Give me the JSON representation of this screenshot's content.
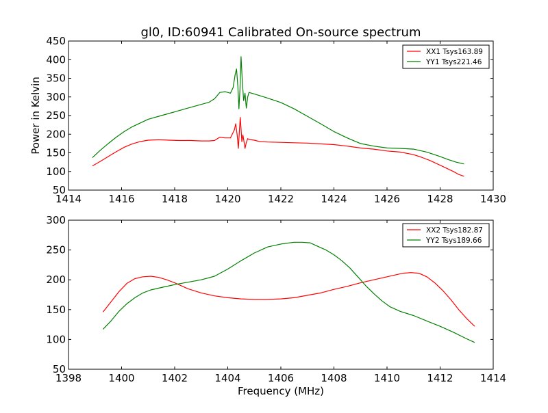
{
  "chart_data": [
    {
      "type": "line",
      "title": "gl0, ID:60941 Calibrated On-source spectrum",
      "xlabel": "",
      "ylabel": "Power in Kelvin",
      "xlim": [
        1414,
        1430
      ],
      "ylim": [
        50,
        450
      ],
      "xticks": [
        "1414",
        "1416",
        "1418",
        "1420",
        "1422",
        "1424",
        "1426",
        "1428",
        "1430"
      ],
      "yticks": [
        "50",
        "100",
        "150",
        "200",
        "250",
        "300",
        "350",
        "400",
        "450"
      ],
      "legend": "top-right",
      "grid": false,
      "series": [
        {
          "name": "XX1 Tsys163.89",
          "color": "#ff0000",
          "x": [
            1414.9,
            1415.2,
            1415.5,
            1415.8,
            1416.1,
            1416.4,
            1416.7,
            1417.0,
            1417.4,
            1417.8,
            1418.2,
            1418.6,
            1419.0,
            1419.3,
            1419.5,
            1419.7,
            1419.9,
            1420.1,
            1420.25,
            1420.3,
            1420.35,
            1420.4,
            1420.43,
            1420.47,
            1420.5,
            1420.53,
            1420.57,
            1420.6,
            1420.65,
            1420.7,
            1420.75,
            1420.8,
            1421.0,
            1421.2,
            1421.5,
            1422.0,
            1422.5,
            1423.0,
            1423.5,
            1424.0,
            1424.5,
            1425.0,
            1425.5,
            1426.0,
            1426.5,
            1427.0,
            1427.3,
            1427.6,
            1427.9,
            1428.2,
            1428.5,
            1428.7,
            1428.9
          ],
          "values": [
            115,
            127,
            140,
            153,
            165,
            174,
            180,
            184,
            185,
            184,
            183,
            183,
            182,
            182,
            183,
            192,
            190,
            190,
            212,
            228,
            200,
            162,
            200,
            245,
            215,
            180,
            198,
            186,
            162,
            178,
            188,
            186,
            184,
            180,
            179,
            178,
            177,
            176,
            174,
            172,
            168,
            163,
            160,
            155,
            152,
            145,
            138,
            130,
            120,
            110,
            100,
            92,
            87
          ]
        },
        {
          "name": "YY1 Tsys221.46",
          "color": "#008000",
          "x": [
            1414.9,
            1415.2,
            1415.5,
            1415.8,
            1416.1,
            1416.4,
            1416.7,
            1417.0,
            1417.5,
            1418.0,
            1418.5,
            1419.0,
            1419.3,
            1419.5,
            1419.7,
            1419.9,
            1420.1,
            1420.2,
            1420.28,
            1420.33,
            1420.38,
            1420.42,
            1420.46,
            1420.5,
            1420.55,
            1420.6,
            1420.65,
            1420.7,
            1420.75,
            1420.8,
            1421.0,
            1421.5,
            1422.0,
            1422.5,
            1423.0,
            1423.5,
            1424.0,
            1424.5,
            1425.0,
            1425.5,
            1426.0,
            1426.5,
            1427.0,
            1427.5,
            1428.0,
            1428.3,
            1428.6,
            1428.9
          ],
          "values": [
            137,
            157,
            175,
            192,
            207,
            220,
            230,
            240,
            250,
            260,
            270,
            280,
            286,
            295,
            312,
            314,
            310,
            325,
            360,
            375,
            330,
            268,
            320,
            408,
            340,
            290,
            310,
            270,
            300,
            312,
            308,
            297,
            285,
            268,
            248,
            228,
            207,
            190,
            175,
            168,
            163,
            162,
            160,
            152,
            140,
            132,
            125,
            120
          ]
        }
      ]
    },
    {
      "type": "line",
      "title": "",
      "xlabel": "Frequency (MHz)",
      "ylabel": "",
      "xlim": [
        1398,
        1414
      ],
      "ylim": [
        50,
        300
      ],
      "xticks": [
        "1398",
        "1400",
        "1402",
        "1404",
        "1406",
        "1408",
        "1410",
        "1412",
        "1414"
      ],
      "yticks": [
        "50",
        "100",
        "150",
        "200",
        "250",
        "300"
      ],
      "legend": "top-right",
      "grid": false,
      "series": [
        {
          "name": "XX2 Tsys182.87",
          "color": "#ff0000",
          "x": [
            1399.3,
            1399.6,
            1399.9,
            1400.2,
            1400.5,
            1400.8,
            1401.1,
            1401.4,
            1401.7,
            1402.0,
            1402.5,
            1403.0,
            1403.5,
            1404.0,
            1404.5,
            1405.0,
            1405.5,
            1406.0,
            1406.5,
            1407.0,
            1407.5,
            1408.0,
            1408.5,
            1409.0,
            1409.5,
            1410.0,
            1410.3,
            1410.6,
            1410.9,
            1411.2,
            1411.5,
            1411.8,
            1412.1,
            1412.4,
            1412.7,
            1413.0,
            1413.3
          ],
          "values": [
            146,
            163,
            180,
            194,
            202,
            205,
            206,
            204,
            200,
            195,
            185,
            178,
            173,
            170,
            168,
            167,
            167,
            168,
            170,
            174,
            178,
            184,
            189,
            195,
            200,
            205,
            208,
            211,
            212,
            211,
            205,
            195,
            182,
            167,
            150,
            135,
            122
          ]
        },
        {
          "name": "YY2 Tsys189.66",
          "color": "#008000",
          "x": [
            1399.3,
            1399.6,
            1399.9,
            1400.2,
            1400.5,
            1400.8,
            1401.1,
            1401.5,
            1402.0,
            1402.5,
            1403.0,
            1403.5,
            1404.0,
            1404.5,
            1405.0,
            1405.5,
            1406.0,
            1406.5,
            1406.8,
            1407.1,
            1407.4,
            1407.7,
            1408.0,
            1408.3,
            1408.6,
            1408.9,
            1409.2,
            1409.5,
            1409.8,
            1410.1,
            1410.5,
            1411.0,
            1411.5,
            1412.0,
            1412.5,
            1413.0,
            1413.3
          ],
          "values": [
            117,
            131,
            147,
            160,
            170,
            178,
            183,
            187,
            192,
            196,
            200,
            206,
            218,
            232,
            245,
            255,
            260,
            263,
            263,
            262,
            256,
            250,
            242,
            232,
            220,
            205,
            190,
            177,
            165,
            155,
            147,
            140,
            131,
            122,
            112,
            101,
            95
          ]
        }
      ]
    }
  ]
}
